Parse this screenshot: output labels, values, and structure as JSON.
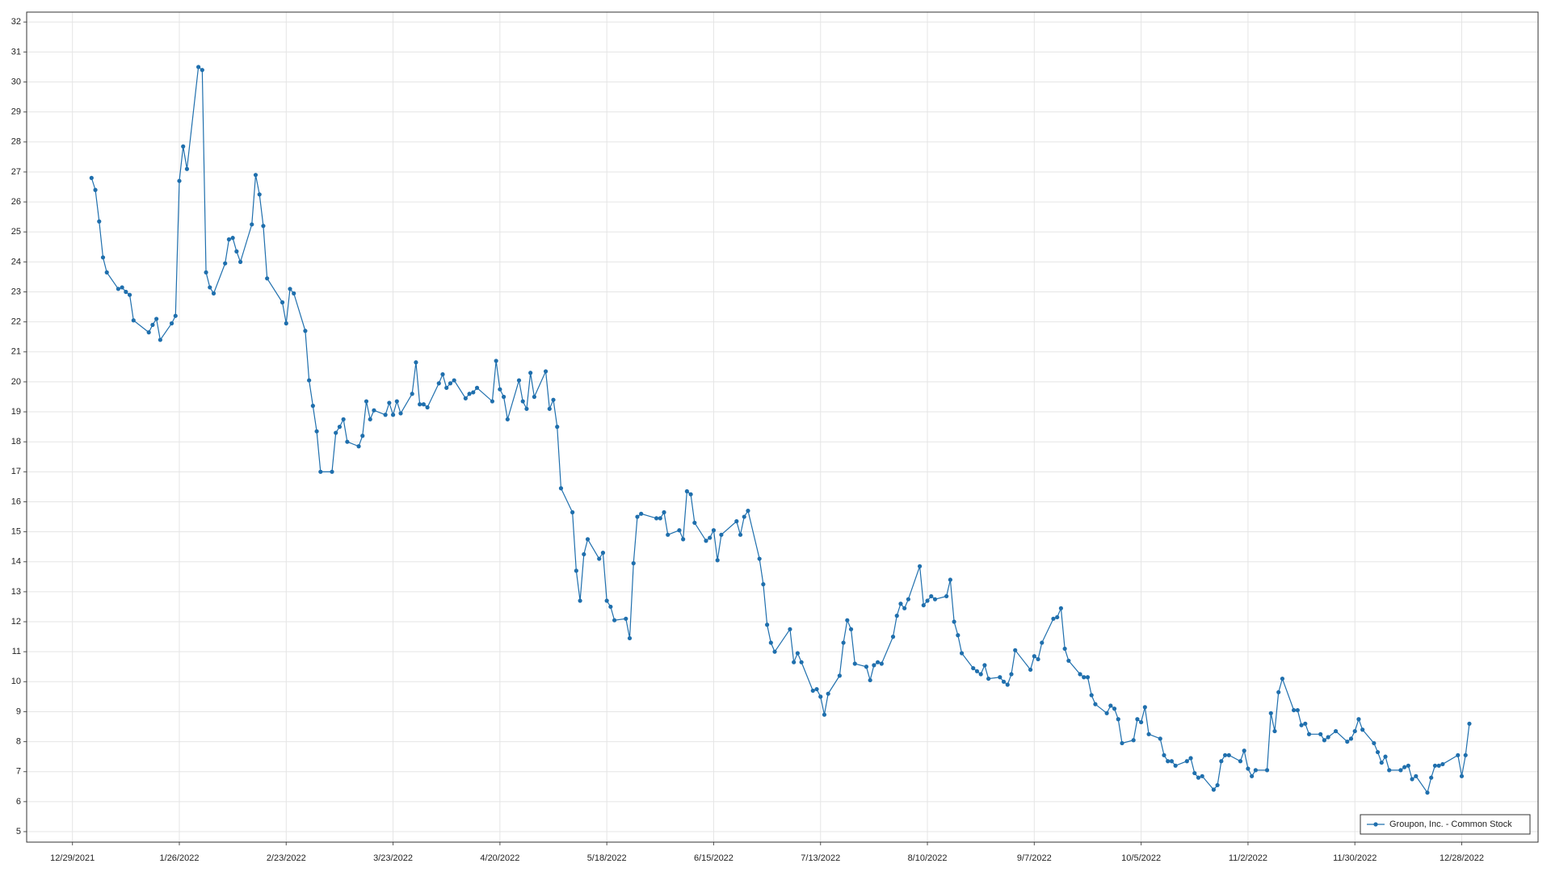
{
  "chart_data": {
    "type": "line",
    "x": [
      "1/3/2022",
      "1/4/2022",
      "1/5/2022",
      "1/6/2022",
      "1/7/2022",
      "1/10/2022",
      "1/11/2022",
      "1/12/2022",
      "1/13/2022",
      "1/14/2022",
      "1/18/2022",
      "1/19/2022",
      "1/20/2022",
      "1/21/2022",
      "1/24/2022",
      "1/25/2022",
      "1/26/2022",
      "1/27/2022",
      "1/28/2022",
      "1/31/2022",
      "2/1/2022",
      "2/2/2022",
      "2/3/2022",
      "2/4/2022",
      "2/7/2022",
      "2/8/2022",
      "2/9/2022",
      "2/10/2022",
      "2/11/2022",
      "2/14/2022",
      "2/15/2022",
      "2/16/2022",
      "2/17/2022",
      "2/18/2022",
      "2/22/2022",
      "2/23/2022",
      "2/24/2022",
      "2/25/2022",
      "2/28/2022",
      "3/1/2022",
      "3/2/2022",
      "3/3/2022",
      "3/4/2022",
      "3/7/2022",
      "3/8/2022",
      "3/9/2022",
      "3/10/2022",
      "3/11/2022",
      "3/14/2022",
      "3/15/2022",
      "3/16/2022",
      "3/17/2022",
      "3/18/2022",
      "3/21/2022",
      "3/22/2022",
      "3/23/2022",
      "3/24/2022",
      "3/25/2022",
      "3/28/2022",
      "3/29/2022",
      "3/30/2022",
      "3/31/2022",
      "4/1/2022",
      "4/4/2022",
      "4/5/2022",
      "4/6/2022",
      "4/7/2022",
      "4/8/2022",
      "4/11/2022",
      "4/12/2022",
      "4/13/2022",
      "4/14/2022",
      "4/18/2022",
      "4/19/2022",
      "4/20/2022",
      "4/21/2022",
      "4/22/2022",
      "4/25/2022",
      "4/26/2022",
      "4/27/2022",
      "4/28/2022",
      "4/29/2022",
      "5/2/2022",
      "5/3/2022",
      "5/4/2022",
      "5/5/2022",
      "5/6/2022",
      "5/9/2022",
      "5/10/2022",
      "5/11/2022",
      "5/12/2022",
      "5/13/2022",
      "5/16/2022",
      "5/17/2022",
      "5/18/2022",
      "5/19/2022",
      "5/20/2022",
      "5/23/2022",
      "5/24/2022",
      "5/25/2022",
      "5/26/2022",
      "5/27/2022",
      "5/31/2022",
      "6/1/2022",
      "6/2/2022",
      "6/3/2022",
      "6/6/2022",
      "6/7/2022",
      "6/8/2022",
      "6/9/2022",
      "6/10/2022",
      "6/13/2022",
      "6/14/2022",
      "6/15/2022",
      "6/16/2022",
      "6/17/2022",
      "6/21/2022",
      "6/22/2022",
      "6/23/2022",
      "6/24/2022",
      "6/27/2022",
      "6/28/2022",
      "6/29/2022",
      "6/30/2022",
      "7/1/2022",
      "7/5/2022",
      "7/6/2022",
      "7/7/2022",
      "7/8/2022",
      "7/11/2022",
      "7/12/2022",
      "7/13/2022",
      "7/14/2022",
      "7/15/2022",
      "7/18/2022",
      "7/19/2022",
      "7/20/2022",
      "7/21/2022",
      "7/22/2022",
      "7/25/2022",
      "7/26/2022",
      "7/27/2022",
      "7/28/2022",
      "7/29/2022",
      "8/1/2022",
      "8/2/2022",
      "8/3/2022",
      "8/4/2022",
      "8/5/2022",
      "8/8/2022",
      "8/9/2022",
      "8/10/2022",
      "8/11/2022",
      "8/12/2022",
      "8/15/2022",
      "8/16/2022",
      "8/17/2022",
      "8/18/2022",
      "8/19/2022",
      "8/22/2022",
      "8/23/2022",
      "8/24/2022",
      "8/25/2022",
      "8/26/2022",
      "8/29/2022",
      "8/30/2022",
      "8/31/2022",
      "9/1/2022",
      "9/2/2022",
      "9/6/2022",
      "9/7/2022",
      "9/8/2022",
      "9/9/2022",
      "9/12/2022",
      "9/13/2022",
      "9/14/2022",
      "9/15/2022",
      "9/16/2022",
      "9/19/2022",
      "9/20/2022",
      "9/21/2022",
      "9/22/2022",
      "9/23/2022",
      "9/26/2022",
      "9/27/2022",
      "9/28/2022",
      "9/29/2022",
      "9/30/2022",
      "10/3/2022",
      "10/4/2022",
      "10/5/2022",
      "10/6/2022",
      "10/7/2022",
      "10/10/2022",
      "10/11/2022",
      "10/12/2022",
      "10/13/2022",
      "10/14/2022",
      "10/17/2022",
      "10/18/2022",
      "10/19/2022",
      "10/20/2022",
      "10/21/2022",
      "10/24/2022",
      "10/25/2022",
      "10/26/2022",
      "10/27/2022",
      "10/28/2022",
      "10/31/2022",
      "11/1/2022",
      "11/2/2022",
      "11/3/2022",
      "11/4/2022",
      "11/7/2022",
      "11/8/2022",
      "11/9/2022",
      "11/10/2022",
      "11/11/2022",
      "11/14/2022",
      "11/15/2022",
      "11/16/2022",
      "11/17/2022",
      "11/18/2022",
      "11/21/2022",
      "11/22/2022",
      "11/23/2022",
      "11/25/2022",
      "11/28/2022",
      "11/29/2022",
      "11/30/2022",
      "12/1/2022",
      "12/2/2022",
      "12/5/2022",
      "12/6/2022",
      "12/7/2022",
      "12/8/2022",
      "12/9/2022",
      "12/12/2022",
      "12/13/2022",
      "12/14/2022",
      "12/15/2022",
      "12/16/2022",
      "12/19/2022",
      "12/20/2022",
      "12/21/2022",
      "12/22/2022",
      "12/23/2022",
      "12/27/2022",
      "12/28/2022",
      "12/29/2022",
      "12/30/2022"
    ],
    "series": [
      {
        "name": "Groupon, Inc. - Common Stock",
        "color": "#1f6fad",
        "values": [
          26.8,
          26.4,
          25.35,
          24.15,
          23.65,
          23.1,
          23.15,
          23.0,
          22.9,
          22.05,
          21.65,
          21.9,
          22.1,
          21.4,
          21.95,
          22.2,
          26.7,
          27.85,
          27.1,
          30.5,
          30.4,
          23.65,
          23.15,
          22.95,
          23.95,
          24.75,
          24.8,
          24.35,
          24.0,
          25.25,
          26.9,
          26.25,
          25.2,
          23.45,
          22.65,
          21.95,
          23.1,
          22.95,
          21.7,
          20.05,
          19.2,
          18.35,
          17.0,
          17.0,
          18.3,
          18.5,
          18.75,
          18.0,
          17.85,
          18.2,
          19.35,
          18.75,
          19.05,
          18.9,
          19.3,
          18.9,
          19.35,
          18.95,
          19.6,
          20.65,
          19.25,
          19.25,
          19.15,
          19.95,
          20.25,
          19.8,
          19.95,
          20.05,
          19.45,
          19.6,
          19.65,
          19.8,
          19.35,
          20.7,
          19.75,
          19.5,
          18.75,
          20.05,
          19.35,
          19.1,
          20.3,
          19.5,
          20.35,
          19.1,
          19.4,
          18.5,
          16.45,
          15.65,
          13.7,
          12.7,
          14.25,
          14.75,
          14.1,
          14.3,
          12.7,
          12.5,
          12.05,
          12.1,
          11.45,
          13.95,
          15.5,
          15.6,
          15.45,
          15.45,
          15.65,
          14.9,
          15.05,
          14.75,
          16.35,
          16.25,
          15.3,
          14.7,
          14.8,
          15.05,
          14.05,
          14.9,
          15.35,
          14.9,
          15.5,
          15.7,
          14.1,
          13.25,
          11.9,
          11.3,
          11.0,
          11.75,
          10.65,
          10.95,
          10.65,
          9.7,
          9.75,
          9.5,
          8.9,
          9.6,
          10.2,
          11.3,
          12.05,
          11.75,
          10.6,
          10.5,
          10.05,
          10.55,
          10.65,
          10.6,
          11.5,
          12.2,
          12.6,
          12.45,
          12.75,
          13.85,
          12.55,
          12.7,
          12.85,
          12.75,
          12.85,
          13.4,
          12.0,
          11.55,
          10.95,
          10.45,
          10.35,
          10.25,
          10.55,
          10.1,
          10.15,
          10.0,
          9.9,
          10.25,
          11.05,
          10.4,
          10.85,
          10.75,
          11.3,
          12.1,
          12.15,
          12.45,
          11.1,
          10.7,
          10.25,
          10.15,
          10.15,
          9.55,
          9.25,
          8.95,
          9.2,
          9.1,
          8.75,
          7.95,
          8.05,
          8.75,
          8.65,
          9.15,
          8.25,
          8.1,
          7.55,
          7.35,
          7.35,
          7.2,
          7.35,
          7.45,
          6.95,
          6.8,
          6.85,
          6.4,
          6.55,
          7.35,
          7.55,
          7.55,
          7.35,
          7.7,
          7.1,
          6.85,
          7.05,
          7.05,
          8.95,
          8.35,
          9.65,
          10.1,
          9.05,
          9.05,
          8.55,
          8.6,
          8.25,
          8.25,
          8.05,
          8.15,
          8.35,
          8.0,
          8.1,
          8.35,
          8.75,
          8.4,
          7.95,
          7.65,
          7.3,
          7.5,
          7.05,
          7.05,
          7.15,
          7.2,
          6.75,
          6.85,
          6.3,
          6.8,
          7.2,
          7.2,
          7.25,
          7.55,
          6.85,
          7.55,
          8.6
        ]
      }
    ],
    "xlim": [
      "12/17/2021",
      "1/17/2023"
    ],
    "xticks": [
      "12/29/2021",
      "1/26/2022",
      "2/23/2022",
      "3/23/2022",
      "4/20/2022",
      "5/18/2022",
      "6/15/2022",
      "7/13/2022",
      "8/10/2022",
      "9/7/2022",
      "10/5/2022",
      "11/2/2022",
      "11/30/2022",
      "12/28/2022"
    ],
    "ylim": [
      4.65,
      32.33
    ],
    "yticks": [
      5,
      6,
      7,
      8,
      9,
      10,
      11,
      12,
      13,
      14,
      15,
      16,
      17,
      18,
      19,
      20,
      21,
      22,
      23,
      24,
      25,
      26,
      27,
      28,
      29,
      30,
      31,
      32
    ],
    "grid": true,
    "legend": "lower right"
  }
}
